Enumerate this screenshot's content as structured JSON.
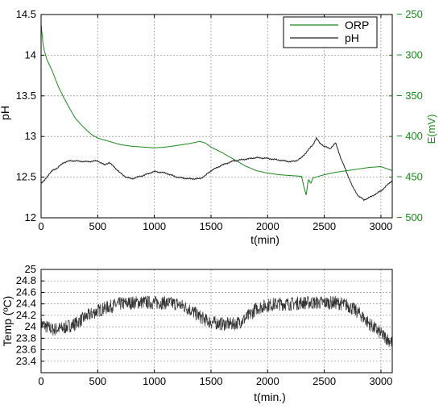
{
  "colors": {
    "orp": "#1a8a1a",
    "ph": "#222222",
    "temp": "#333333"
  },
  "chart_data": [
    {
      "type": "line",
      "title": "",
      "xlabel": "t(min)",
      "ylabel": "pH",
      "y2label": "E(mV)",
      "xlim": [
        0,
        3100
      ],
      "ylim": [
        12,
        14.5
      ],
      "y2lim": [
        -500,
        -250
      ],
      "grid": true,
      "legend": "top-right",
      "xticks": [
        0,
        500,
        1000,
        1500,
        2000,
        2500,
        3000
      ],
      "yticks": [
        12,
        12.5,
        13,
        13.5,
        14,
        14.5
      ],
      "y2ticks": [
        -250,
        -300,
        -350,
        -400,
        -450,
        -500
      ],
      "series": [
        {
          "name": "ORP",
          "axis": "right",
          "x": [
            0,
            20,
            50,
            100,
            150,
            200,
            250,
            300,
            350,
            400,
            450,
            500,
            600,
            700,
            800,
            900,
            1000,
            1100,
            1200,
            1300,
            1400,
            1450,
            1500,
            1600,
            1700,
            1800,
            1900,
            2000,
            2100,
            2200,
            2300,
            2320,
            2340,
            2360,
            2380,
            2400,
            2450,
            2500,
            2600,
            2700,
            2800,
            2900,
            3000,
            3100
          ],
          "values": [
            -262,
            -290,
            -305,
            -320,
            -338,
            -352,
            -365,
            -377,
            -385,
            -392,
            -398,
            -402,
            -406,
            -410,
            -412,
            -413,
            -414,
            -413,
            -411,
            -409,
            -406,
            -408,
            -413,
            -420,
            -428,
            -436,
            -442,
            -445,
            -447,
            -448,
            -449,
            -462,
            -472,
            -452,
            -458,
            -451,
            -449,
            -447,
            -444,
            -442,
            -440,
            -438,
            -437,
            -442
          ]
        },
        {
          "name": "pH",
          "axis": "left",
          "x": [
            0,
            30,
            60,
            100,
            150,
            200,
            250,
            300,
            400,
            500,
            560,
            600,
            650,
            700,
            750,
            800,
            900,
            1000,
            1100,
            1200,
            1300,
            1400,
            1450,
            1500,
            1600,
            1700,
            1800,
            1900,
            2000,
            2100,
            2200,
            2250,
            2300,
            2350,
            2400,
            2430,
            2460,
            2500,
            2550,
            2600,
            2650,
            2700,
            2750,
            2800,
            2850,
            2900,
            3000,
            3100
          ],
          "values": [
            12.42,
            12.46,
            12.52,
            12.58,
            12.62,
            12.68,
            12.7,
            12.7,
            12.69,
            12.7,
            12.65,
            12.68,
            12.62,
            12.55,
            12.5,
            12.48,
            12.52,
            12.57,
            12.55,
            12.5,
            12.48,
            12.48,
            12.52,
            12.58,
            12.65,
            12.7,
            12.72,
            12.74,
            12.73,
            12.71,
            12.69,
            12.7,
            12.74,
            12.82,
            12.9,
            12.98,
            12.92,
            12.88,
            12.85,
            12.92,
            12.72,
            12.55,
            12.38,
            12.27,
            12.22,
            12.25,
            12.33,
            12.46
          ]
        }
      ]
    },
    {
      "type": "line",
      "title": "",
      "xlabel": "t(min.)",
      "ylabel": "Temp (ºC)",
      "xlim": [
        0,
        3100
      ],
      "ylim": [
        23.2,
        25
      ],
      "grid": true,
      "xticks": [
        0,
        500,
        1000,
        1500,
        2000,
        2500,
        3000
      ],
      "yticks": [
        23.4,
        23.6,
        23.8,
        24,
        24.2,
        24.4,
        24.6,
        24.8,
        25
      ],
      "series": [
        {
          "axis": "left",
          "x": [
            0,
            100,
            200,
            300,
            400,
            500,
            600,
            700,
            800,
            900,
            1000,
            1100,
            1200,
            1300,
            1350,
            1400,
            1450,
            1500,
            1600,
            1700,
            1750,
            1800,
            1850,
            1900,
            2000,
            2100,
            2200,
            2300,
            2400,
            2500,
            2600,
            2700,
            2800,
            2900,
            3000,
            3100
          ],
          "values": [
            24.05,
            23.95,
            23.98,
            24.05,
            24.18,
            24.28,
            24.35,
            24.4,
            24.42,
            24.43,
            24.42,
            24.42,
            24.4,
            24.32,
            24.25,
            24.18,
            24.12,
            24.08,
            24.05,
            24.05,
            24.08,
            24.14,
            24.22,
            24.32,
            24.38,
            24.4,
            24.4,
            24.42,
            24.42,
            24.42,
            24.42,
            24.38,
            24.25,
            24.05,
            23.88,
            23.72
          ],
          "noise_amplitude": 0.12
        }
      ]
    }
  ]
}
